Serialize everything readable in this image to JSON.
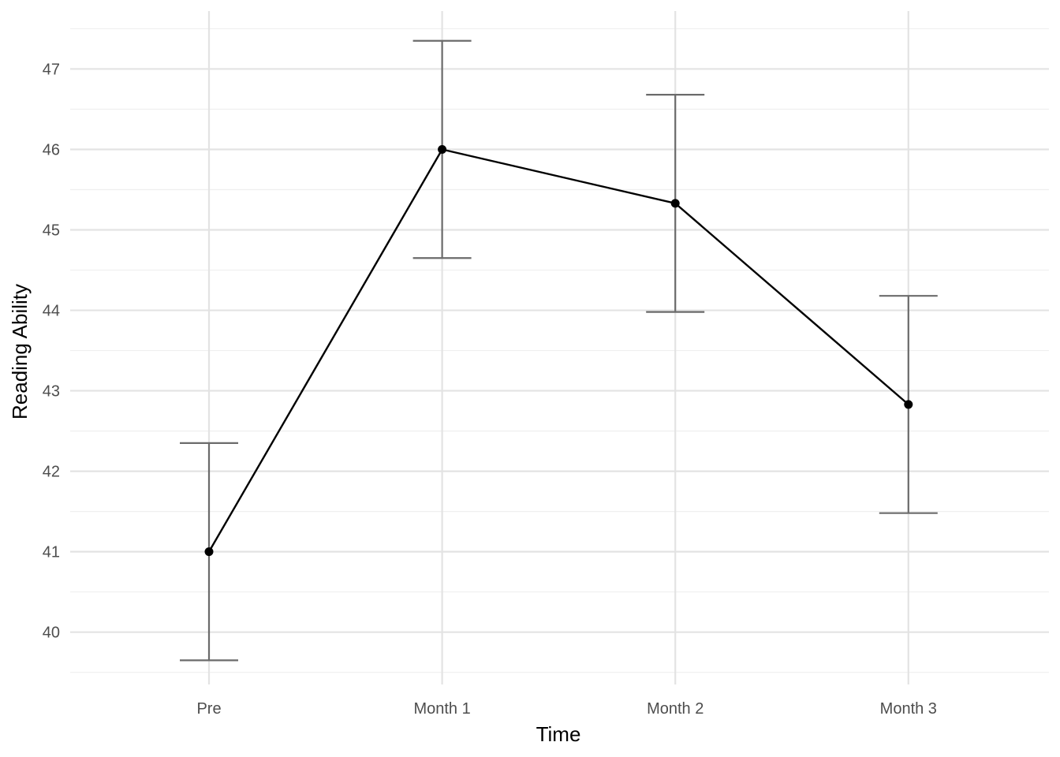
{
  "chart_data": {
    "type": "line",
    "xlabel": "Time",
    "ylabel": "Reading Ability",
    "categories": [
      "Pre",
      "Month 1",
      "Month 2",
      "Month 3"
    ],
    "series": [
      {
        "values": [
          41.0,
          46.0,
          45.33,
          42.83
        ],
        "error_lower": [
          39.65,
          44.65,
          43.98,
          41.48
        ],
        "error_upper": [
          42.35,
          47.35,
          46.68,
          44.18
        ]
      }
    ],
    "yticks": [
      40,
      41,
      42,
      43,
      44,
      45,
      46,
      47
    ],
    "ylim": [
      39.35,
      47.72
    ],
    "grid": true,
    "legend": "none",
    "colors": {
      "line": "#000000",
      "point": "#000000",
      "errorbar": "#6b6b6b",
      "grid_major": "#e3e3e3",
      "grid_minor": "#efefef"
    }
  }
}
